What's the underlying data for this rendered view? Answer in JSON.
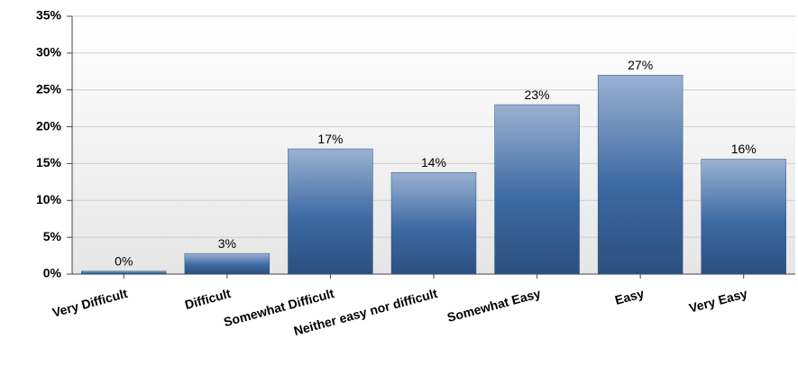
{
  "chart_data": {
    "type": "bar",
    "categories": [
      "Very Difficult",
      "Difficult",
      "Somewhat Difficult",
      "Neither easy nor difficult",
      "Somewhat Easy",
      "Easy",
      "Very Easy"
    ],
    "values": [
      0.4,
      2.8,
      17,
      13.8,
      23,
      27,
      15.6
    ],
    "value_labels": [
      "0%",
      "3%",
      "17%",
      "14%",
      "23%",
      "27%",
      "16%"
    ],
    "color": "#3d6aa3",
    "ylim": [
      0,
      35
    ],
    "yticks": [
      {
        "value": 0,
        "label": "0%"
      },
      {
        "value": 5,
        "label": "5%"
      },
      {
        "value": 10,
        "label": "10%"
      },
      {
        "value": 15,
        "label": "15%"
      },
      {
        "value": 20,
        "label": "20%"
      },
      {
        "value": 25,
        "label": "25%"
      },
      {
        "value": 30,
        "label": "30%"
      },
      {
        "value": 35,
        "label": "35%"
      }
    ],
    "grid": true
  }
}
